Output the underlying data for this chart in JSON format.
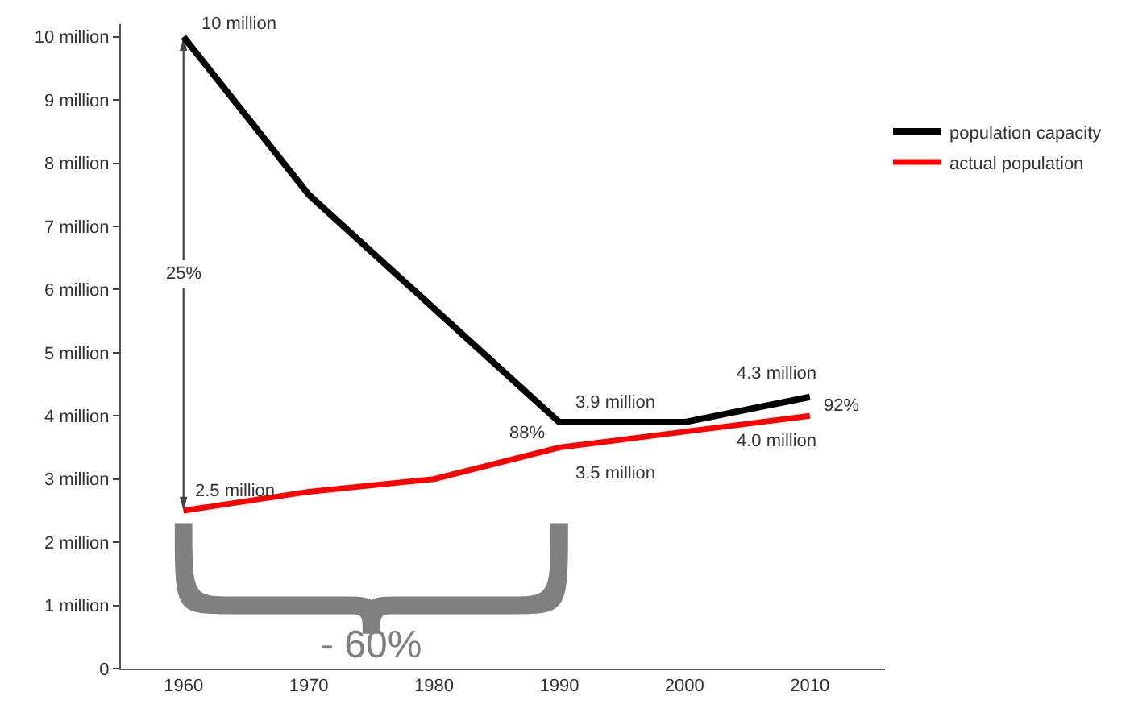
{
  "chart_data": {
    "type": "line",
    "x": [
      1960,
      1970,
      1980,
      1990,
      2000,
      2010
    ],
    "series": [
      {
        "name": "population capacity",
        "color": "#000000",
        "values": [
          10,
          7.5,
          5.7,
          3.9,
          3.9,
          4.3
        ],
        "value_labels": [
          "10 million",
          null,
          null,
          "3.9 million",
          null,
          "4.3 million"
        ]
      },
      {
        "name": "actual population",
        "color": "#ff0000",
        "values": [
          2.5,
          2.8,
          3.0,
          3.5,
          3.75,
          4.0
        ],
        "value_labels": [
          "2.5 million",
          null,
          null,
          "3.5 million",
          null,
          "4.0 million"
        ]
      }
    ],
    "xlim": [
      1955,
      2016
    ],
    "xticks": [
      1960,
      1970,
      1980,
      1990,
      2000,
      2010
    ],
    "ylim": [
      0,
      10.2
    ],
    "yticks": [
      0,
      {
        "value": 1,
        "label": "1 million"
      },
      {
        "value": 2,
        "label": "2 million"
      },
      {
        "value": 3,
        "label": "3 million"
      },
      {
        "value": 4,
        "label": "4 million"
      },
      {
        "value": 5,
        "label": "5 million"
      },
      {
        "value": 6,
        "label": "6 million"
      },
      {
        "value": 7,
        "label": "7 million"
      },
      {
        "value": 8,
        "label": "8 million"
      },
      {
        "value": 9,
        "label": "9 million"
      },
      {
        "value": 10,
        "label": "10 million"
      }
    ],
    "annotations": [
      {
        "text": "25%",
        "x": 1960,
        "y": 6.25
      },
      "88%",
      {
        "text": "92%",
        "x": 2010,
        "y": 4.15
      },
      "- 60%"
    ],
    "grid": false,
    "legend": "top right",
    "marker": "none",
    "line_style": "solid"
  }
}
